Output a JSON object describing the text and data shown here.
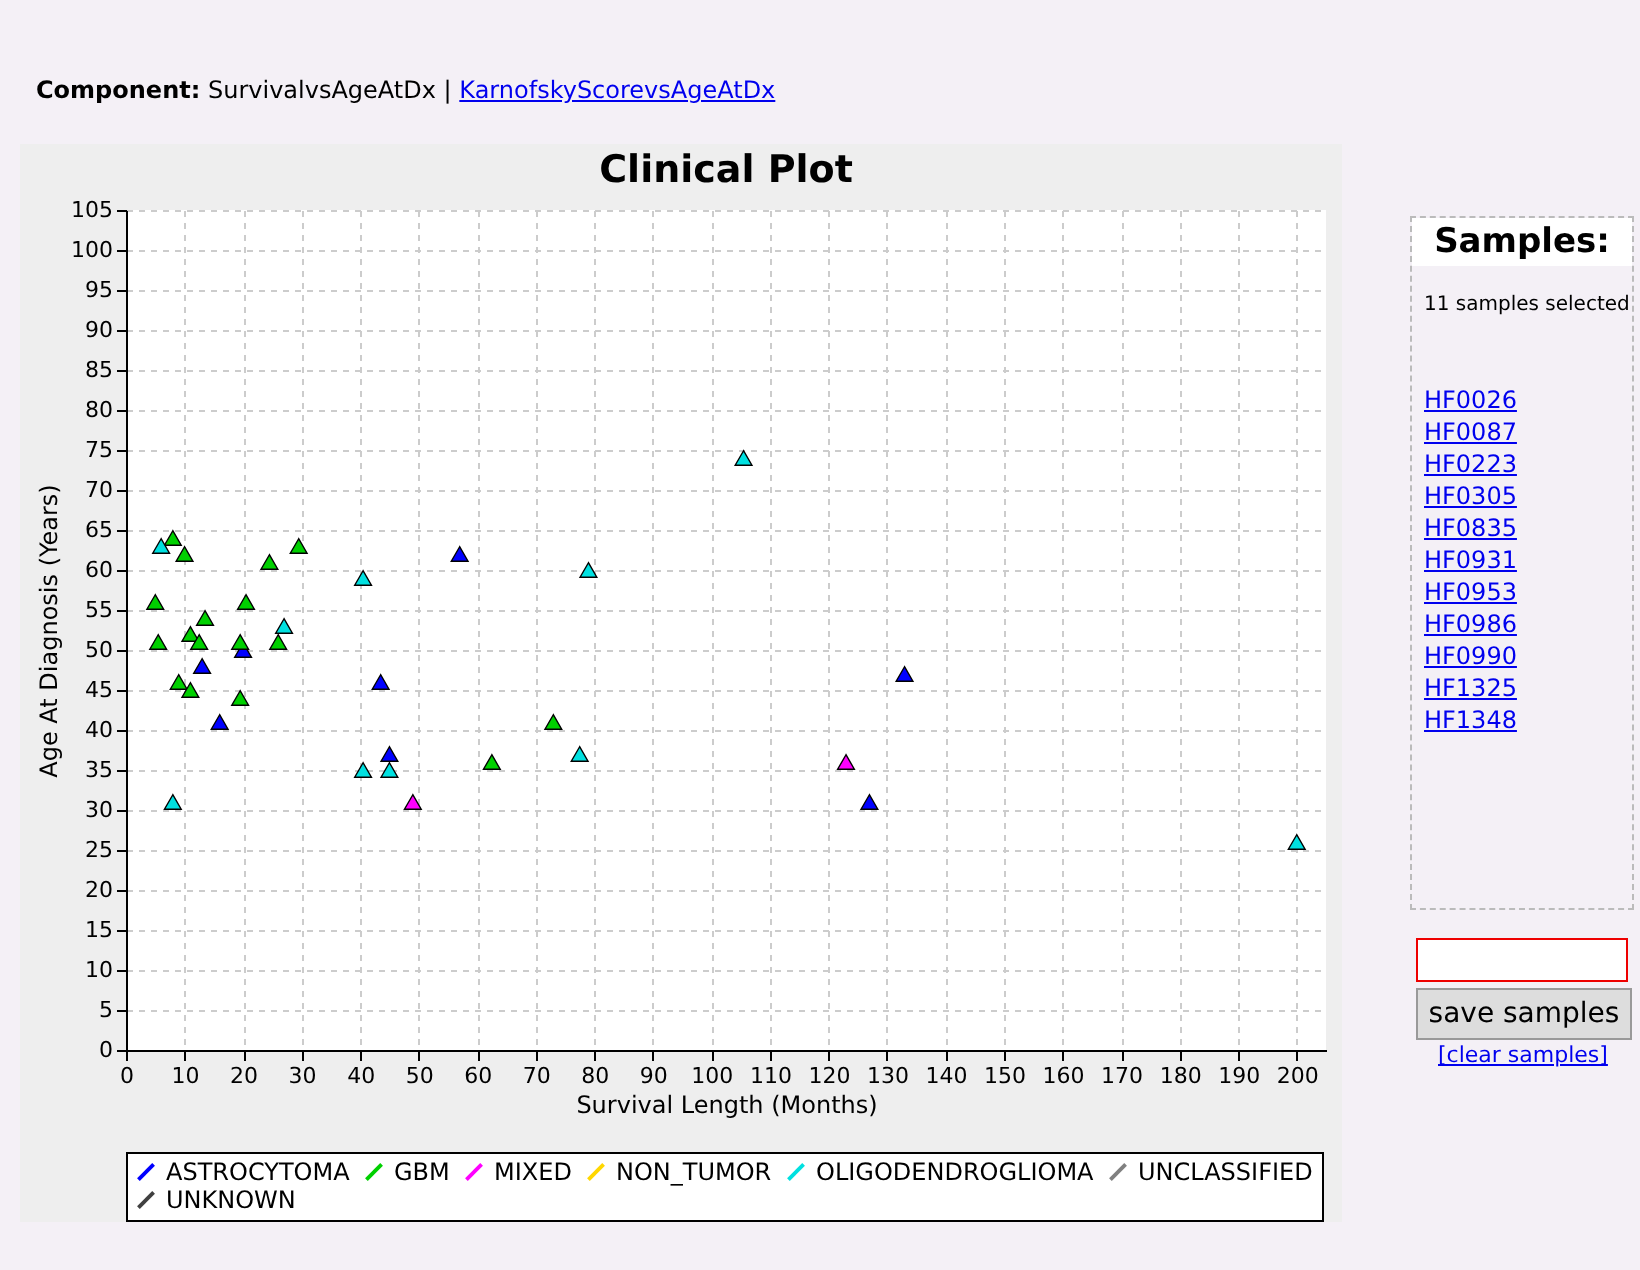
{
  "chart_data": {
    "type": "scatter",
    "title": "Clinical Plot",
    "xlabel": "Survival Length (Months)",
    "ylabel": "Age At Diagnosis (Years)",
    "xlim": [
      0,
      205
    ],
    "ylim": [
      0,
      105
    ],
    "xticks": [
      0,
      10,
      20,
      30,
      40,
      50,
      60,
      70,
      80,
      90,
      100,
      110,
      120,
      130,
      140,
      150,
      160,
      170,
      180,
      190,
      200
    ],
    "yticks": [
      0,
      5,
      10,
      15,
      20,
      25,
      30,
      35,
      40,
      45,
      50,
      55,
      60,
      65,
      70,
      75,
      80,
      85,
      90,
      95,
      100,
      105
    ],
    "grid": true,
    "legend": "bottom",
    "marker": "triangle",
    "series": [
      {
        "name": "ASTROCYTOMA",
        "color": "#0000ff",
        "x": [
          13,
          16,
          20,
          43.5,
          45,
          57,
          127,
          133
        ],
        "values": [
          48,
          41,
          50,
          46,
          37,
          62,
          31,
          47
        ]
      },
      {
        "name": "GBM",
        "color": "#00d000",
        "x": [
          5,
          5.5,
          8,
          10,
          9,
          11,
          11,
          12.5,
          13.5,
          19.5,
          19.5,
          20.5,
          24.5,
          26,
          29.5,
          62.5,
          73
        ],
        "values": [
          56,
          51,
          64,
          62,
          46,
          45,
          52,
          51,
          54,
          51,
          44,
          56,
          61,
          51,
          63,
          36,
          41
        ]
      },
      {
        "name": "MIXED",
        "color": "#ff00ff",
        "x": [
          49,
          123
        ],
        "values": [
          31,
          36
        ]
      },
      {
        "name": "NON_TUMOR",
        "color": "#ffd700"
      },
      {
        "name": "OLIGODENDROGLIOMA",
        "color": "#00e0e0",
        "x": [
          6,
          8,
          27,
          40.5,
          40.5,
          45,
          77.5,
          79,
          105.5,
          200
        ],
        "values": [
          63,
          31,
          53,
          59,
          35,
          35,
          37,
          60,
          74,
          26
        ]
      },
      {
        "name": "UNCLASSIFIED",
        "color": "#808080"
      },
      {
        "name": "UNKNOWN",
        "color": "#404040"
      }
    ],
    "annotations": [
      "Component:",
      "SurvivalvsAgeAtDx |",
      "KarnofskyScorevsAgeAtDx",
      "Samples:",
      "11 samples selected",
      "HF0026",
      "HF0087",
      "HF0223",
      "HF0305",
      "HF0835",
      "HF0931",
      "HF0953",
      "HF0986",
      "HF0990",
      "HF1325",
      "HF1348",
      "save samples",
      "[clear samples]"
    ]
  }
}
